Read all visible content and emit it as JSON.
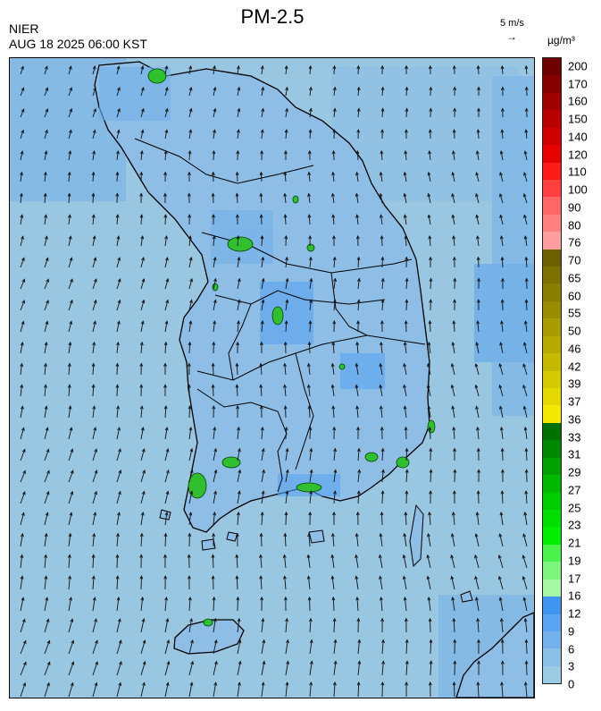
{
  "header": {
    "title": "PM-2.5",
    "agency": "NIER",
    "timestamp": "AUG 18 2025 06:00 KST",
    "scale_label": "5 m/s",
    "scale_arrow": "→",
    "unit": "µg/m³"
  },
  "legend": {
    "ticks": [
      "200",
      "170",
      "160",
      "150",
      "140",
      "120",
      "110",
      "100",
      "90",
      "80",
      "76",
      "70",
      "65",
      "60",
      "55",
      "50",
      "46",
      "42",
      "39",
      "37",
      "36",
      "33",
      "31",
      "29",
      "27",
      "25",
      "23",
      "21",
      "19",
      "17",
      "16",
      "12",
      "9",
      "6",
      "3",
      "0"
    ],
    "colors": [
      "#6e0000",
      "#870000",
      "#a00000",
      "#b80000",
      "#d00000",
      "#e60000",
      "#ff1a1a",
      "#ff4040",
      "#ff6666",
      "#ff8080",
      "#ff9e9e",
      "#6b6000",
      "#7c7000",
      "#8a7e00",
      "#988c00",
      "#a89c00",
      "#b7ab00",
      "#c6ba00",
      "#d5c900",
      "#e3d800",
      "#f2e800",
      "#007000",
      "#008800",
      "#00a000",
      "#00b800",
      "#00cc00",
      "#00dd00",
      "#00ee00",
      "#4cf24c",
      "#7ff57f",
      "#a6f7a6",
      "#3f95f0",
      "#5aa3f0",
      "#74b1ea",
      "#8bbfe6",
      "#9ccce3"
    ]
  },
  "map": {
    "wind_direction": "north-northeast",
    "ocean_color": "#99c6e0",
    "land_base_color": "#8ebde6",
    "hotspot_color": "#2fbf2f"
  }
}
